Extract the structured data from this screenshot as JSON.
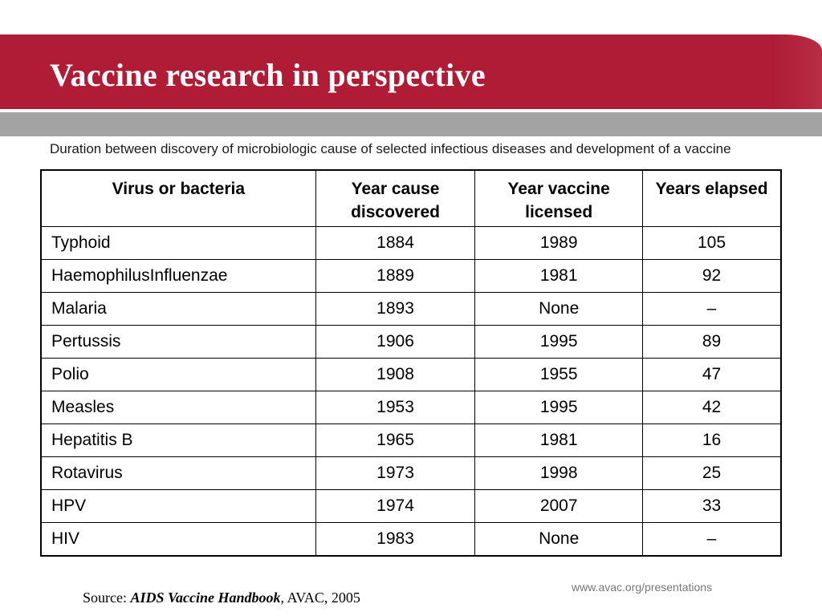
{
  "slide": {
    "title": "Vaccine research in perspective",
    "subtitle": "Duration between discovery of microbiologic cause of selected infectious diseases and development of a vaccine",
    "url": "www.avac.org/presentations",
    "source": {
      "prefix": "Source: ",
      "title": "AIDS Vaccine Handbook",
      "suffix": ", AVAC, 2005"
    }
  },
  "colors": {
    "title_bar": "#b01c35",
    "grey_bar": "#a3a3a3"
  },
  "table": {
    "headers": [
      "Virus or bacteria",
      "Year cause discovered",
      "Year vaccine licensed",
      "Years elapsed"
    ],
    "rows": [
      [
        "Typhoid",
        "1884",
        "1989",
        "105"
      ],
      [
        "HaemophilusInfluenzae",
        "1889",
        "1981",
        "92"
      ],
      [
        "Malaria",
        "1893",
        "None",
        "–"
      ],
      [
        "Pertussis",
        "1906",
        "1995",
        "89"
      ],
      [
        "Polio",
        "1908",
        "1955",
        "47"
      ],
      [
        "Measles",
        "1953",
        "1995",
        "42"
      ],
      [
        "Hepatitis B",
        "1965",
        "1981",
        "16"
      ],
      [
        "Rotavirus",
        "1973",
        "1998",
        "25"
      ],
      [
        "HPV",
        "1974",
        "2007",
        "33"
      ],
      [
        "HIV",
        "1983",
        "None",
        "–"
      ]
    ]
  }
}
